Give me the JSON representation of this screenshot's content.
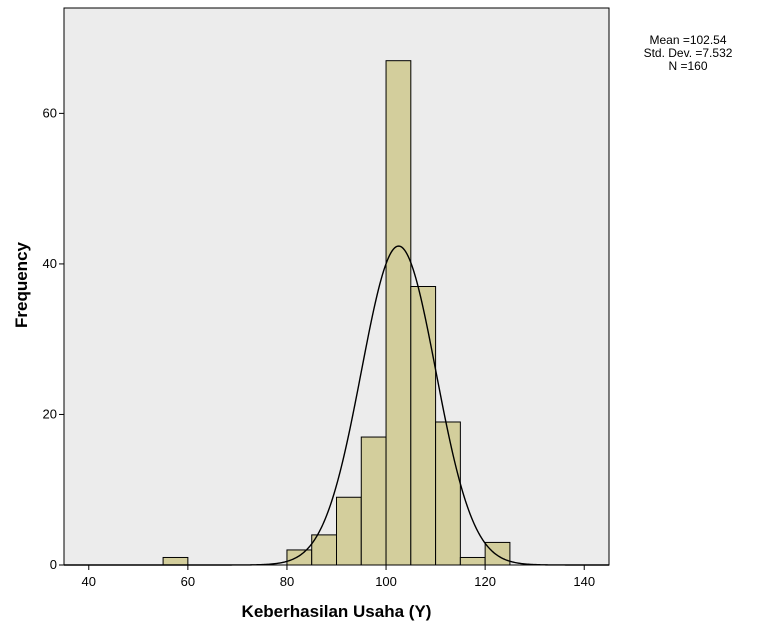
{
  "stats": {
    "mean": "Mean =102.54",
    "std": "Std. Dev. =7.532",
    "n": "N =160"
  },
  "chart_data": {
    "type": "bar",
    "subtype": "histogram",
    "xlabel": "Keberhasilan Usaha (Y)",
    "ylabel": "Frequency",
    "xlim": [
      35,
      145
    ],
    "ylim": [
      0,
      74
    ],
    "xticks": [
      40,
      60,
      80,
      100,
      120,
      140
    ],
    "yticks": [
      0,
      20,
      40,
      60
    ],
    "bin_width": 5,
    "bins": [
      {
        "start": 55,
        "end": 60,
        "count": 1
      },
      {
        "start": 80,
        "end": 85,
        "count": 2
      },
      {
        "start": 85,
        "end": 90,
        "count": 4
      },
      {
        "start": 90,
        "end": 95,
        "count": 9
      },
      {
        "start": 95,
        "end": 100,
        "count": 17
      },
      {
        "start": 100,
        "end": 105,
        "count": 67
      },
      {
        "start": 105,
        "end": 110,
        "count": 37
      },
      {
        "start": 110,
        "end": 115,
        "count": 19
      },
      {
        "start": 115,
        "end": 120,
        "count": 1
      },
      {
        "start": 120,
        "end": 125,
        "count": 3
      }
    ],
    "normal_curve": {
      "mean": 102.54,
      "std": 7.532,
      "n": 160
    },
    "colors": {
      "plot_bg": "#ececec",
      "bar_fill": "#d3ce9c",
      "bar_stroke": "#000000",
      "curve": "#000000"
    },
    "grid": false,
    "legend": "none"
  }
}
